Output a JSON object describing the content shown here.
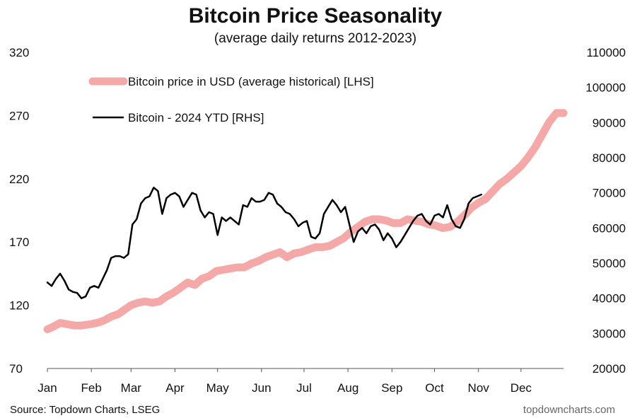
{
  "chart_data": {
    "type": "line",
    "title": "Bitcoin Price Seasonality",
    "subtitle": "(average daily returns 2012-2023)",
    "source": "Source: Topdown Charts, LSEG",
    "watermark": "topdowncharts.com",
    "x_axis": {
      "labels": [
        "Jan",
        "Feb",
        "Mar",
        "Apr",
        "May",
        "Jun",
        "Jul",
        "Aug",
        "Sep",
        "Oct",
        "Nov",
        "Dec"
      ],
      "range_days": [
        1,
        365
      ]
    },
    "y_axis_left": {
      "ticks": [
        "320",
        "270",
        "220",
        "170",
        "120",
        "70"
      ],
      "ylim": [
        70,
        320
      ]
    },
    "y_axis_right": {
      "ticks": [
        "110000",
        "100000",
        "90000",
        "80000",
        "70000",
        "60000",
        "50000",
        "40000",
        "30000",
        "20000"
      ],
      "ylim": [
        20000,
        110000
      ]
    },
    "series": [
      {
        "name": "Bitcoin price in USD (average historical) [LHS]",
        "axis": "left",
        "color": "#f4a9a8",
        "points": [
          [
            1,
            101
          ],
          [
            5,
            103
          ],
          [
            10,
            106
          ],
          [
            15,
            105
          ],
          [
            20,
            104
          ],
          [
            25,
            104
          ],
          [
            31,
            105
          ],
          [
            36,
            106
          ],
          [
            41,
            108
          ],
          [
            46,
            111
          ],
          [
            51,
            113
          ],
          [
            56,
            117
          ],
          [
            60,
            120
          ],
          [
            65,
            122
          ],
          [
            70,
            123
          ],
          [
            75,
            122
          ],
          [
            80,
            123
          ],
          [
            85,
            127
          ],
          [
            90,
            130
          ],
          [
            95,
            134
          ],
          [
            100,
            138
          ],
          [
            105,
            136
          ],
          [
            110,
            141
          ],
          [
            115,
            143
          ],
          [
            120,
            147
          ],
          [
            125,
            148
          ],
          [
            130,
            149
          ],
          [
            135,
            150
          ],
          [
            140,
            150
          ],
          [
            145,
            153
          ],
          [
            150,
            155
          ],
          [
            155,
            158
          ],
          [
            160,
            160
          ],
          [
            165,
            162
          ],
          [
            170,
            158
          ],
          [
            175,
            161
          ],
          [
            180,
            162
          ],
          [
            185,
            164
          ],
          [
            190,
            166
          ],
          [
            195,
            166
          ],
          [
            200,
            167
          ],
          [
            205,
            170
          ],
          [
            210,
            173
          ],
          [
            215,
            178
          ],
          [
            220,
            182
          ],
          [
            225,
            186
          ],
          [
            230,
            188
          ],
          [
            235,
            188
          ],
          [
            240,
            187
          ],
          [
            245,
            185
          ],
          [
            250,
            185
          ],
          [
            255,
            188
          ],
          [
            260,
            187
          ],
          [
            265,
            186
          ],
          [
            270,
            184
          ],
          [
            275,
            183
          ],
          [
            280,
            181
          ],
          [
            285,
            182
          ],
          [
            290,
            186
          ],
          [
            295,
            191
          ],
          [
            300,
            197
          ],
          [
            305,
            201
          ],
          [
            310,
            204
          ],
          [
            315,
            210
          ],
          [
            320,
            216
          ],
          [
            325,
            220
          ],
          [
            330,
            225
          ],
          [
            335,
            230
          ],
          [
            340,
            237
          ],
          [
            345,
            245
          ],
          [
            350,
            255
          ],
          [
            355,
            265
          ],
          [
            360,
            272
          ],
          [
            365,
            272
          ]
        ]
      },
      {
        "name": "Bitcoin - 2024 YTD [RHS]",
        "axis": "right",
        "color": "#000000",
        "points": [
          [
            1,
            44500
          ],
          [
            4,
            43500
          ],
          [
            7,
            45500
          ],
          [
            10,
            47000
          ],
          [
            13,
            45000
          ],
          [
            16,
            42500
          ],
          [
            19,
            41800
          ],
          [
            22,
            41500
          ],
          [
            25,
            40000
          ],
          [
            28,
            40500
          ],
          [
            31,
            43000
          ],
          [
            34,
            43500
          ],
          [
            37,
            43000
          ],
          [
            40,
            45500
          ],
          [
            43,
            48000
          ],
          [
            46,
            51500
          ],
          [
            49,
            52000
          ],
          [
            52,
            52000
          ],
          [
            55,
            51500
          ],
          [
            58,
            52500
          ],
          [
            61,
            61000
          ],
          [
            64,
            62500
          ],
          [
            67,
            67000
          ],
          [
            70,
            68500
          ],
          [
            73,
            69000
          ],
          [
            76,
            71500
          ],
          [
            79,
            70500
          ],
          [
            82,
            64000
          ],
          [
            85,
            68500
          ],
          [
            88,
            69500
          ],
          [
            91,
            70000
          ],
          [
            94,
            69000
          ],
          [
            97,
            66000
          ],
          [
            100,
            68000
          ],
          [
            103,
            70000
          ],
          [
            106,
            69500
          ],
          [
            109,
            65000
          ],
          [
            112,
            63000
          ],
          [
            115,
            64500
          ],
          [
            118,
            64000
          ],
          [
            121,
            58000
          ],
          [
            124,
            63000
          ],
          [
            127,
            62000
          ],
          [
            130,
            63000
          ],
          [
            133,
            62000
          ],
          [
            136,
            61000
          ],
          [
            139,
            66500
          ],
          [
            142,
            66000
          ],
          [
            145,
            68500
          ],
          [
            148,
            67500
          ],
          [
            151,
            67500
          ],
          [
            154,
            68000
          ],
          [
            157,
            70000
          ],
          [
            160,
            69500
          ],
          [
            163,
            67000
          ],
          [
            166,
            66000
          ],
          [
            169,
            64500
          ],
          [
            172,
            64000
          ],
          [
            175,
            62500
          ],
          [
            178,
            60500
          ],
          [
            181,
            61500
          ],
          [
            184,
            62000
          ],
          [
            187,
            57500
          ],
          [
            190,
            57000
          ],
          [
            193,
            58500
          ],
          [
            196,
            64000
          ],
          [
            199,
            66000
          ],
          [
            202,
            68000
          ],
          [
            205,
            66500
          ],
          [
            208,
            64500
          ],
          [
            211,
            66000
          ],
          [
            214,
            61000
          ],
          [
            217,
            56000
          ],
          [
            220,
            59000
          ],
          [
            223,
            60000
          ],
          [
            226,
            58500
          ],
          [
            229,
            60500
          ],
          [
            232,
            61000
          ],
          [
            235,
            59500
          ],
          [
            238,
            56500
          ],
          [
            241,
            58500
          ],
          [
            244,
            57000
          ],
          [
            247,
            54500
          ],
          [
            250,
            56000
          ],
          [
            253,
            58000
          ],
          [
            256,
            60000
          ],
          [
            259,
            62000
          ],
          [
            262,
            63500
          ],
          [
            265,
            64000
          ],
          [
            268,
            62000
          ],
          [
            271,
            61000
          ],
          [
            274,
            63500
          ],
          [
            277,
            64000
          ],
          [
            280,
            63000
          ],
          [
            283,
            66500
          ],
          [
            286,
            62500
          ],
          [
            289,
            60500
          ],
          [
            292,
            60000
          ],
          [
            295,
            62500
          ],
          [
            298,
            67000
          ],
          [
            301,
            68500
          ],
          [
            304,
            69000
          ],
          [
            307,
            69500
          ]
        ]
      }
    ]
  }
}
